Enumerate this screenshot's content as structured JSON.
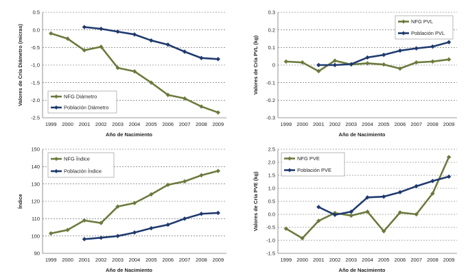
{
  "chart_data": [
    {
      "type": "line",
      "title": "",
      "xlabel": "Año de Nacimiento",
      "ylabel": "Valores de Cría Diámetro (micras)",
      "categories": [
        "1999",
        "2000",
        "2001",
        "2002",
        "2003",
        "2004",
        "2005",
        "2006",
        "2007",
        "2008",
        "2009"
      ],
      "ylim": [
        -2.5,
        0.5
      ],
      "yticks": [
        "-2.5",
        "-2.0",
        "-1.5",
        "-1.0",
        "-0.5",
        "0.0",
        "0.5"
      ],
      "grid": true,
      "legend": "bottom-left",
      "series": [
        {
          "name": "NFG Diámetro",
          "color": "#6b7a3c",
          "marker": "diamond",
          "values": [
            -0.1,
            -0.25,
            -0.58,
            -0.48,
            -1.08,
            -1.18,
            -1.5,
            -1.85,
            -1.95,
            -2.18,
            -2.35
          ]
        },
        {
          "name": "Población Diámetro",
          "color": "#1f3a6e",
          "marker": "diamond",
          "values": [
            null,
            null,
            0.08,
            0.03,
            -0.05,
            -0.13,
            -0.3,
            -0.42,
            -0.62,
            -0.8,
            -0.83
          ]
        }
      ]
    },
    {
      "type": "line",
      "title": "",
      "xlabel": "Año de Nacimiento",
      "ylabel": "Valores de Cría PVL (kg)",
      "categories": [
        "1999",
        "2000",
        "2001",
        "2002",
        "2003",
        "2004",
        "2005",
        "2006",
        "2007",
        "2008",
        "2009"
      ],
      "ylim": [
        -0.3,
        0.3
      ],
      "yticks": [
        "-0.3",
        "-0.2",
        "-0.1",
        "0",
        "0.1",
        "0.2",
        "0.3"
      ],
      "grid": true,
      "legend": "top-right",
      "series": [
        {
          "name": "NFG PVL",
          "color": "#6b7a3c",
          "marker": "diamond",
          "values": [
            0.02,
            0.015,
            -0.035,
            0.025,
            0.003,
            0.01,
            0.003,
            -0.02,
            0.015,
            0.02,
            0.032
          ]
        },
        {
          "name": "Población PVL",
          "color": "#1f3a6e",
          "marker": "diamond",
          "values": [
            null,
            null,
            0.0,
            0.0,
            0.005,
            0.043,
            0.058,
            0.082,
            0.095,
            0.105,
            0.13
          ]
        }
      ]
    },
    {
      "type": "line",
      "title": "",
      "xlabel": "Año de Nacimiento",
      "ylabel": "Índice",
      "categories": [
        "1999",
        "2000",
        "2001",
        "2002",
        "2003",
        "2004",
        "2005",
        "2006",
        "2007",
        "2008",
        "2009"
      ],
      "ylim": [
        90,
        150
      ],
      "yticks": [
        "90",
        "100",
        "110",
        "120",
        "130",
        "140",
        "150"
      ],
      "grid": true,
      "legend": "top-left",
      "series": [
        {
          "name": "NFG Índice",
          "color": "#6b7a3c",
          "marker": "diamond",
          "values": [
            101.5,
            103.5,
            109,
            107.5,
            117,
            119,
            124,
            129.5,
            131.5,
            135,
            137.5
          ]
        },
        {
          "name": "Población Índice",
          "color": "#1f3a6e",
          "marker": "diamond",
          "values": [
            null,
            null,
            98.2,
            99,
            100,
            102,
            104.5,
            106.5,
            110,
            112.8,
            113.3
          ]
        }
      ]
    },
    {
      "type": "line",
      "title": "",
      "xlabel": "Año de Nacimiento",
      "ylabel": "Valores de Cría PVE (kg)",
      "categories": [
        "1999",
        "2000",
        "2001",
        "2002",
        "2003",
        "2004",
        "2005",
        "2006",
        "2007",
        "2008",
        "2009"
      ],
      "ylim": [
        -1.5,
        2.5
      ],
      "yticks": [
        "-1.5",
        "-1.0",
        "-0.5",
        "0.0",
        "0.5",
        "1.0",
        "1.5",
        "2.0",
        "2.5"
      ],
      "grid": true,
      "legend": "top-left",
      "series": [
        {
          "name": "NFG PVE",
          "color": "#6b7a3c",
          "marker": "diamond",
          "values": [
            -0.55,
            -0.92,
            -0.25,
            0.05,
            -0.05,
            0.1,
            -0.65,
            0.07,
            0.0,
            0.8,
            2.2
          ]
        },
        {
          "name": "Población PVE",
          "color": "#1f3a6e",
          "marker": "diamond",
          "values": [
            null,
            null,
            0.28,
            -0.02,
            0.1,
            0.65,
            0.68,
            0.85,
            1.08,
            1.28,
            1.45
          ]
        }
      ]
    }
  ]
}
